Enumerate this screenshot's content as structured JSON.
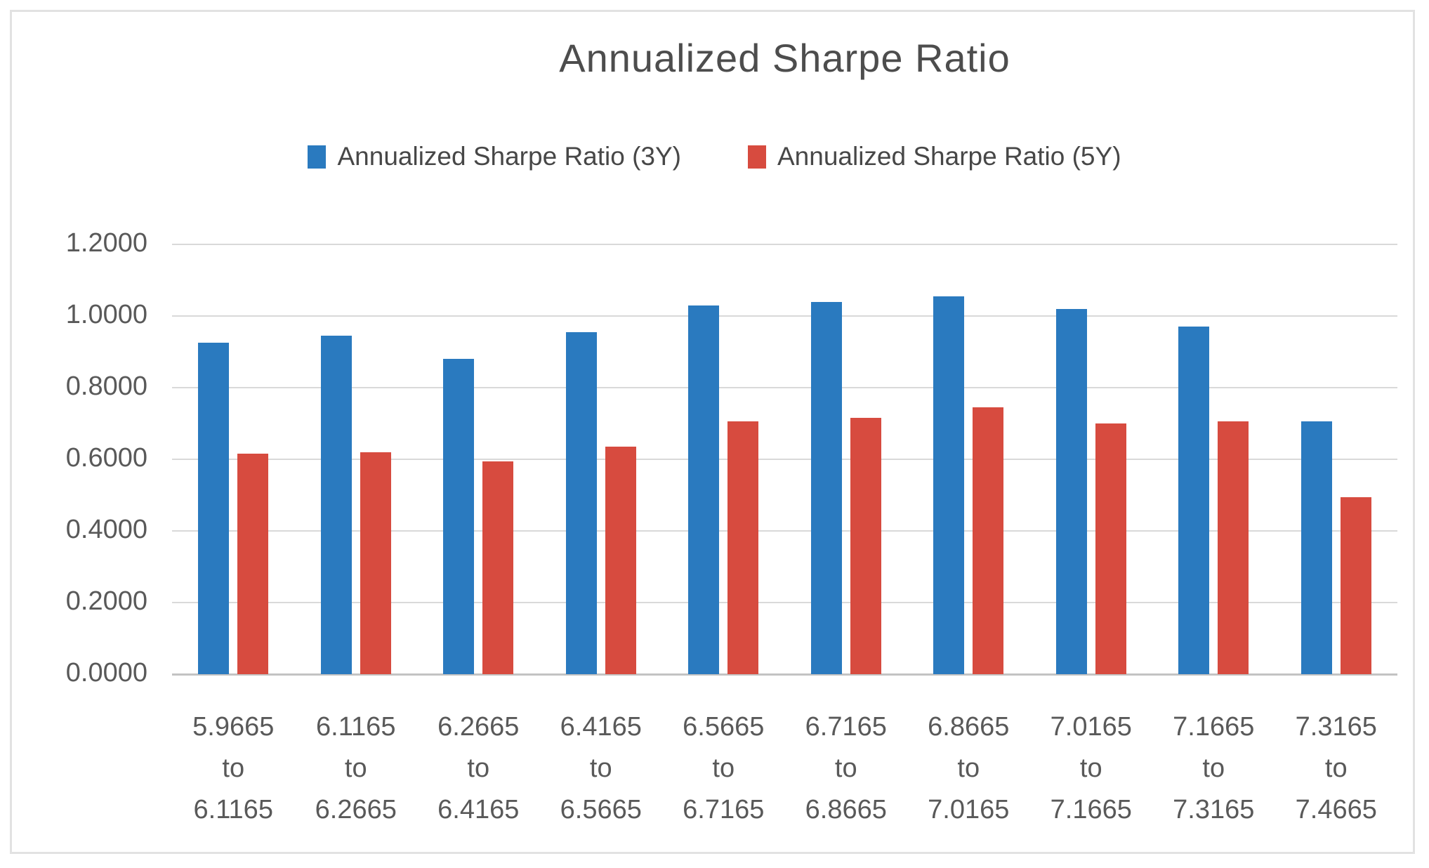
{
  "chart_data": {
    "type": "bar",
    "title": "Annualized Sharpe Ratio",
    "categories": [
      "5.9665 to 6.1165",
      "6.1165 to 6.2665",
      "6.2665 to 6.4165",
      "6.4165 to 6.5665",
      "6.5665 to 6.7165",
      "6.7165 to 6.8665",
      "6.8665 to 7.0165",
      "7.0165 to 7.1665",
      "7.1665 to 7.3165",
      "7.3165 to 7.4665"
    ],
    "series": [
      {
        "name": "Annualized Sharpe Ratio (3Y)",
        "color": "#2a7abf",
        "values": [
          0.925,
          0.945,
          0.88,
          0.955,
          1.03,
          1.04,
          1.055,
          1.02,
          0.97,
          0.705
        ]
      },
      {
        "name": "Annualized Sharpe Ratio (5Y)",
        "color": "#d74b3f",
        "values": [
          0.615,
          0.62,
          0.595,
          0.635,
          0.705,
          0.715,
          0.745,
          0.7,
          0.705,
          0.495
        ]
      }
    ],
    "xlabel": "",
    "ylabel": "",
    "ylim": [
      0,
      1.2
    ],
    "ytick_labels": [
      "0.0000",
      "0.2000",
      "0.4000",
      "0.6000",
      "0.8000",
      "1.0000",
      "1.2000"
    ],
    "ytick_step": 0.2,
    "grid": "horizontal",
    "legend_position": "top",
    "gridline_color": "#d9d9d9",
    "axis_line_color": "#c3c3c3",
    "text_color": "#595959",
    "frame_border_color": "#e2e2e2"
  }
}
